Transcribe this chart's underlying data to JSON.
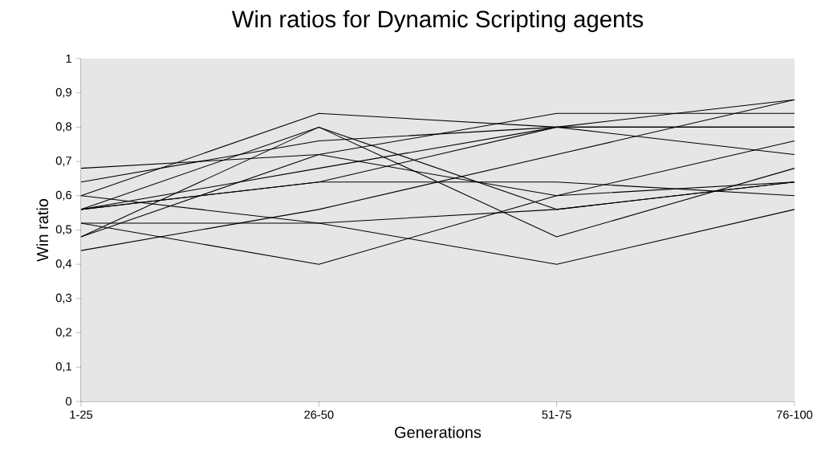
{
  "chart_data": {
    "type": "line",
    "title": "Win ratios for Dynamic Scripting agents",
    "xlabel": "Generations",
    "ylabel": "Win ratio",
    "categories": [
      "1-25",
      "26-50",
      "51-75",
      "76-100"
    ],
    "ylim": [
      0,
      1
    ],
    "yticks": [
      0,
      {
        "value": 0.1,
        "label": "0,1"
      },
      {
        "value": 0.2,
        "label": "0,2"
      },
      {
        "value": 0.3,
        "label": "0,3"
      },
      {
        "value": 0.4,
        "label": "0,4"
      },
      {
        "value": 0.5,
        "label": "0,5"
      },
      {
        "value": 0.6,
        "label": "0,6"
      },
      {
        "value": 0.7,
        "label": "0,7"
      },
      {
        "value": 0.8,
        "label": "0,8"
      },
      {
        "value": 0.9,
        "label": "0,9"
      },
      1
    ],
    "marker": "none",
    "line_style": "solid",
    "series": [
      {
        "color": "#000000",
        "values": [
          0.6,
          0.84,
          0.8,
          0.72
        ]
      },
      {
        "color": "#000000",
        "values": [
          0.56,
          0.8,
          0.56,
          0.64
        ]
      },
      {
        "color": "#000000",
        "values": [
          0.48,
          0.8,
          0.48,
          0.68
        ]
      },
      {
        "color": "#000000",
        "values": [
          0.64,
          0.76,
          0.8,
          0.8
        ]
      },
      {
        "color": "#000000",
        "values": [
          0.68,
          0.72,
          0.84,
          0.84
        ]
      },
      {
        "color": "#000000",
        "values": [
          0.48,
          0.72,
          0.6,
          0.64
        ]
      },
      {
        "color": "#000000",
        "values": [
          0.56,
          0.68,
          0.8,
          0.8
        ]
      },
      {
        "color": "#000000",
        "values": [
          0.56,
          0.64,
          0.8,
          0.88
        ]
      },
      {
        "color": "#000000",
        "values": [
          0.56,
          0.64,
          0.64,
          0.6
        ]
      },
      {
        "color": "#000000",
        "values": [
          0.44,
          0.56,
          0.72,
          0.88
        ]
      },
      {
        "color": "#000000",
        "values": [
          0.6,
          0.52,
          0.56,
          0.64
        ]
      },
      {
        "color": "#000000",
        "values": [
          0.52,
          0.52,
          0.4,
          0.56
        ]
      },
      {
        "color": "#000000",
        "values": [
          0.52,
          0.4,
          0.6,
          0.76
        ]
      }
    ]
  }
}
